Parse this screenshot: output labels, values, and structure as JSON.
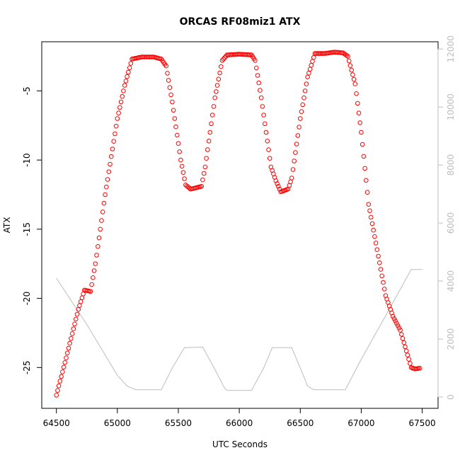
{
  "chart_data": {
    "type": "scatter",
    "title": "ORCAS RF08miz1 ATX",
    "xlabel": "UTC Seconds",
    "ylabel": "ATX",
    "xlim": [
      64380,
      67630
    ],
    "ylim": [
      -27.95,
      -1.45
    ],
    "y2lim": [
      -390,
      12250
    ],
    "x_ticks": [
      64500,
      65000,
      65500,
      66000,
      66500,
      67000,
      67500
    ],
    "y_ticks": [
      -25,
      -20,
      -15,
      -10,
      -5
    ],
    "y2_ticks": [
      0,
      2000,
      4000,
      6000,
      8000,
      10000,
      12000
    ],
    "colors": {
      "atx": "#ff0000",
      "altitude": "#bdbdbd"
    },
    "atx_keypoints": [
      [
        64500,
        -27.0
      ],
      [
        64580,
        -24.3
      ],
      [
        64680,
        -20.8
      ],
      [
        64730,
        -19.4
      ],
      [
        64780,
        -19.5
      ],
      [
        64820,
        -17.5
      ],
      [
        64900,
        -12.5
      ],
      [
        65000,
        -7.0
      ],
      [
        65060,
        -4.6
      ],
      [
        65120,
        -2.7
      ],
      [
        65200,
        -2.55
      ],
      [
        65300,
        -2.55
      ],
      [
        65360,
        -2.7
      ],
      [
        65400,
        -3.2
      ],
      [
        65450,
        -5.8
      ],
      [
        65520,
        -10.0
      ],
      [
        65560,
        -11.8
      ],
      [
        65600,
        -12.1
      ],
      [
        65650,
        -12.0
      ],
      [
        65690,
        -11.9
      ],
      [
        65720,
        -10.5
      ],
      [
        65800,
        -5.5
      ],
      [
        65860,
        -2.8
      ],
      [
        65900,
        -2.4
      ],
      [
        66000,
        -2.35
      ],
      [
        66100,
        -2.4
      ],
      [
        66130,
        -2.8
      ],
      [
        66180,
        -5.5
      ],
      [
        66260,
        -10.5
      ],
      [
        66300,
        -11.5
      ],
      [
        66340,
        -12.3
      ],
      [
        66400,
        -12.1
      ],
      [
        66430,
        -11.3
      ],
      [
        66500,
        -7.0
      ],
      [
        66560,
        -4.0
      ],
      [
        66620,
        -2.3
      ],
      [
        66700,
        -2.3
      ],
      [
        66780,
        -2.2
      ],
      [
        66850,
        -2.25
      ],
      [
        66890,
        -2.5
      ],
      [
        66950,
        -4.5
      ],
      [
        67000,
        -8.0
      ],
      [
        67060,
        -13.2
      ],
      [
        67120,
        -16.0
      ],
      [
        67200,
        -19.8
      ],
      [
        67260,
        -21.3
      ],
      [
        67320,
        -22.3
      ],
      [
        67370,
        -23.8
      ],
      [
        67410,
        -25.0
      ],
      [
        67440,
        -25.1
      ],
      [
        67480,
        -25.05
      ]
    ],
    "altitude_keypoints": [
      [
        64500,
        4100
      ],
      [
        64750,
        2500
      ],
      [
        65000,
        750
      ],
      [
        65080,
        380
      ],
      [
        65150,
        250
      ],
      [
        65360,
        250
      ],
      [
        65450,
        1000
      ],
      [
        65550,
        1700
      ],
      [
        65700,
        1720
      ],
      [
        65800,
        950
      ],
      [
        65880,
        300
      ],
      [
        65900,
        230
      ],
      [
        66100,
        230
      ],
      [
        66200,
        1000
      ],
      [
        66270,
        1700
      ],
      [
        66430,
        1700
      ],
      [
        66500,
        1000
      ],
      [
        66560,
        380
      ],
      [
        66610,
        250
      ],
      [
        66870,
        250
      ],
      [
        67000,
        1300
      ],
      [
        67200,
        2800
      ],
      [
        67410,
        4400
      ],
      [
        67500,
        4400
      ]
    ]
  }
}
